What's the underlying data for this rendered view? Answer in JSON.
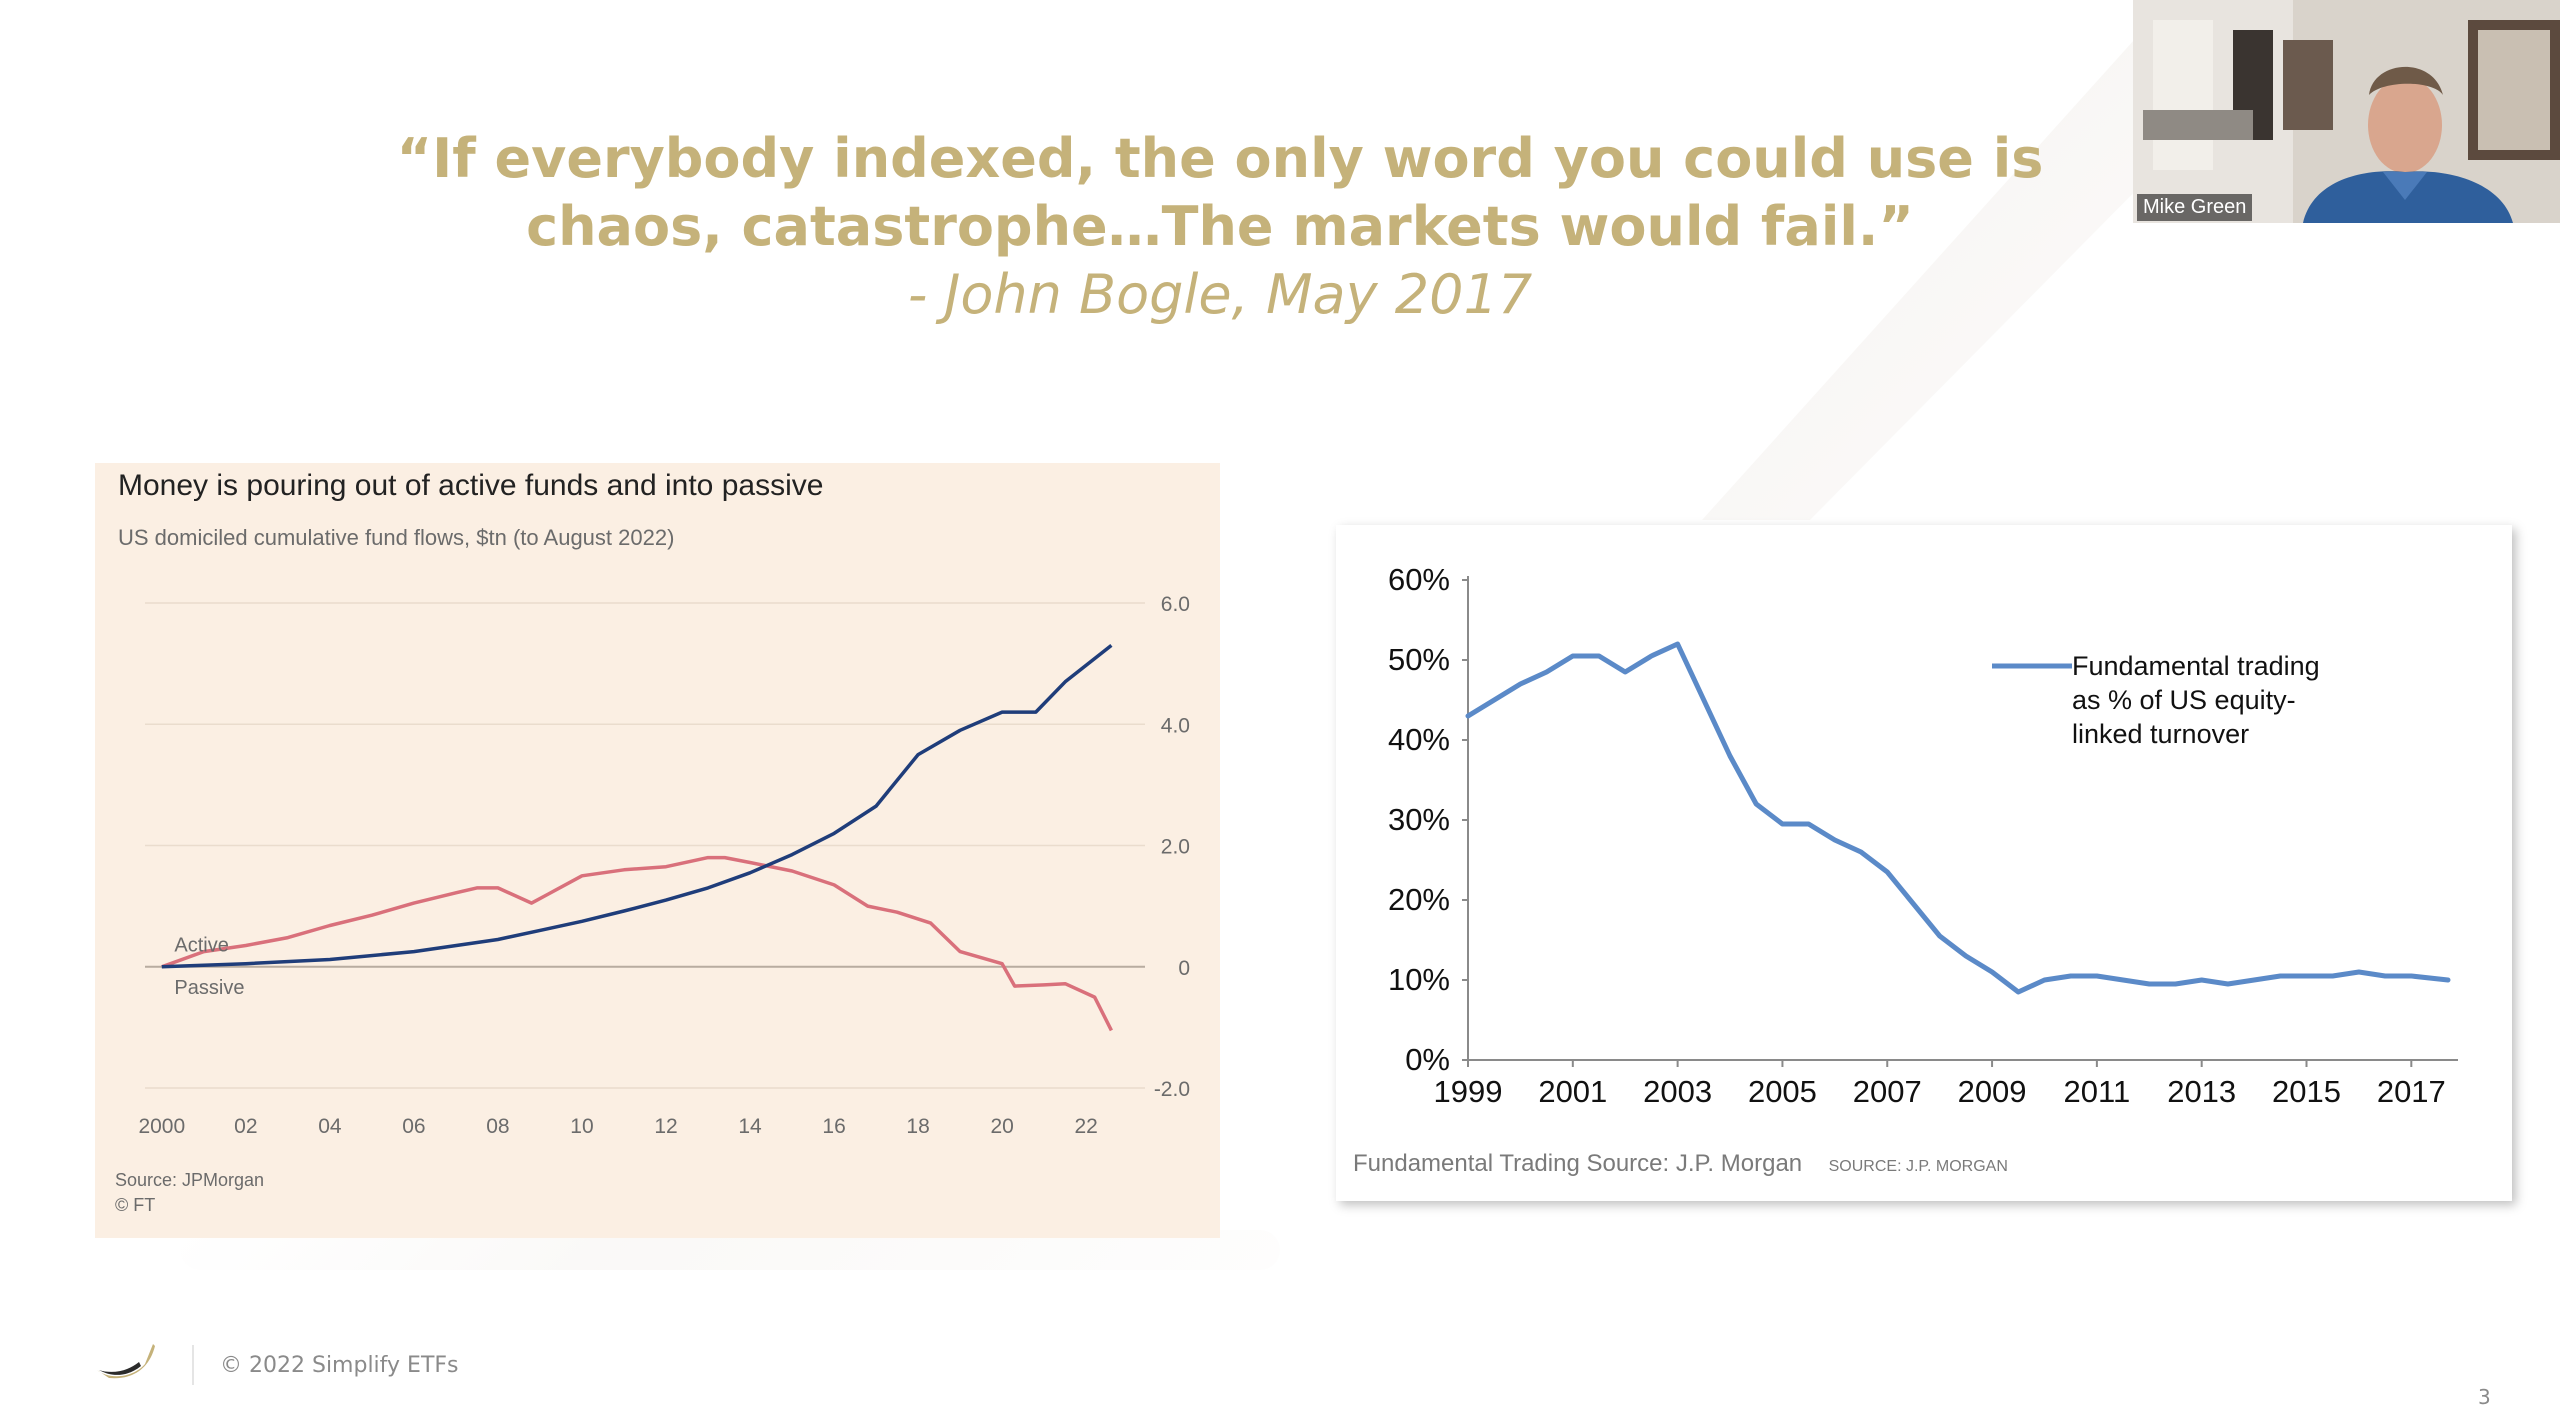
{
  "slide": {
    "quote_line1": "“If everybody indexed, the only word you could use is",
    "quote_line2": "chaos, catastrophe…The markets would fail.”",
    "attribution": "- John Bogle, May 2017",
    "footer_copyright": "© 2022 Simplify ETFs",
    "page_number": "3",
    "quote_color": "#c5b27a"
  },
  "video": {
    "participant_name": "Mike Green"
  },
  "chart_data": [
    {
      "type": "line",
      "title": "Money is pouring out of active funds and into passive",
      "subtitle": "US domiciled cumulative fund flows, $tn (to August 2022)",
      "ylim": [
        -2.0,
        6.0
      ],
      "yticks": [
        "6.0",
        "4.0",
        "2.0",
        "0",
        "-2.0"
      ],
      "ytick_values": [
        6,
        4,
        2,
        0,
        -2
      ],
      "xticks": [
        "2000",
        "02",
        "04",
        "06",
        "08",
        "10",
        "12",
        "14",
        "16",
        "18",
        "20",
        "22"
      ],
      "xtick_values": [
        2000,
        2002,
        2004,
        2006,
        2008,
        2010,
        2012,
        2014,
        2016,
        2018,
        2020,
        2022
      ],
      "xlim": [
        1999.6,
        2023.4
      ],
      "source_lines": [
        "Source: JPMorgan",
        "© FT"
      ],
      "series": [
        {
          "name": "Active",
          "color": "#d9707b",
          "x": [
            2000,
            2001,
            2002,
            2003,
            2004,
            2005,
            2006,
            2007,
            2007.5,
            2008,
            2008.8,
            2009.2,
            2010,
            2011,
            2012,
            2013,
            2013.4,
            2014,
            2015,
            2016,
            2016.8,
            2017.5,
            2018.3,
            2019,
            2020,
            2020.3,
            2021,
            2021.5,
            2022.2,
            2022.6
          ],
          "y": [
            0.0,
            0.25,
            0.35,
            0.48,
            0.68,
            0.85,
            1.05,
            1.22,
            1.3,
            1.3,
            1.05,
            1.2,
            1.5,
            1.6,
            1.65,
            1.8,
            1.8,
            1.72,
            1.58,
            1.35,
            1.0,
            0.9,
            0.72,
            0.25,
            0.05,
            -0.32,
            -0.3,
            -0.28,
            -0.5,
            -1.05
          ]
        },
        {
          "name": "Passive",
          "color": "#1f3d7a",
          "x": [
            2000,
            2002,
            2004,
            2006,
            2008,
            2009,
            2010,
            2011,
            2012,
            2013,
            2014,
            2015,
            2016,
            2017,
            2018,
            2019,
            2020,
            2020.8,
            2021.5,
            2022.6
          ],
          "y": [
            0.0,
            0.05,
            0.12,
            0.25,
            0.45,
            0.6,
            0.75,
            0.92,
            1.1,
            1.3,
            1.55,
            1.85,
            2.2,
            2.65,
            3.5,
            3.9,
            4.2,
            4.2,
            4.7,
            5.3
          ]
        }
      ]
    },
    {
      "type": "line",
      "title": "",
      "ylim": [
        0,
        60
      ],
      "yticks": [
        "60%",
        "50%",
        "40%",
        "30%",
        "20%",
        "10%",
        "0%"
      ],
      "ytick_values": [
        60,
        50,
        40,
        30,
        20,
        10,
        0
      ],
      "xticks": [
        "1999",
        "2001",
        "2003",
        "2005",
        "2007",
        "2009",
        "2011",
        "2013",
        "2015",
        "2017"
      ],
      "xtick_values": [
        1999,
        2001,
        2003,
        2005,
        2007,
        2009,
        2011,
        2013,
        2015,
        2017
      ],
      "xlim": [
        1999,
        2017.7
      ],
      "source_main": "Fundamental Trading Source: J.P. Morgan",
      "source_small": "SOURCE: J.P. MORGAN",
      "legend_lines": [
        "Fundamental trading",
        "as % of US equity-",
        "linked turnover"
      ],
      "legend_position": "top-right",
      "series": [
        {
          "name": "Fundamental trading as % of US equity-linked turnover",
          "color": "#5b8ac8",
          "x": [
            1999,
            1999.5,
            2000,
            2000.5,
            2001,
            2001.5,
            2002,
            2002.5,
            2003,
            2003.5,
            2004,
            2004.5,
            2005,
            2005.5,
            2006,
            2006.5,
            2007,
            2007.5,
            2008,
            2008.5,
            2009,
            2009.5,
            2010,
            2010.5,
            2011,
            2011.5,
            2012,
            2012.5,
            2013,
            2013.5,
            2014,
            2014.5,
            2015,
            2015.5,
            2016,
            2016.5,
            2017,
            2017.7
          ],
          "y": [
            43,
            45,
            47,
            48.5,
            50.5,
            50.5,
            48.5,
            50.5,
            52,
            45,
            38,
            32,
            29.5,
            29.5,
            27.5,
            26,
            23.5,
            19.5,
            15.5,
            13,
            11,
            8.5,
            10,
            10.5,
            10.5,
            10,
            9.5,
            9.5,
            10,
            9.5,
            10,
            10.5,
            10.5,
            10.5,
            11,
            10.5,
            10.5,
            10
          ]
        }
      ]
    }
  ]
}
